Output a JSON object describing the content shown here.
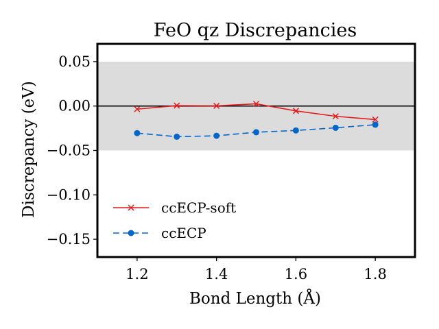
{
  "chart_data": {
    "type": "line",
    "title": "FeO qz Discrepancies",
    "xlabel": "Bond Length (Å)",
    "ylabel": "Discrepancy (eV)",
    "xlim": [
      1.1,
      1.9
    ],
    "ylim": [
      -0.17,
      0.07
    ],
    "xticks": [
      1.2,
      1.4,
      1.6,
      1.8
    ],
    "xtick_labels": [
      "1.2",
      "1.4",
      "1.6",
      "1.8"
    ],
    "yticks": [
      0.05,
      0.0,
      -0.05,
      -0.1,
      -0.15
    ],
    "ytick_labels": [
      "0.05",
      "0.00",
      "−0.05",
      "−0.10",
      "−0.15"
    ],
    "grid": false,
    "shaded_band": [
      -0.05,
      0.05
    ],
    "reference_line": 0.0,
    "legend_position": "lower-left",
    "x": [
      1.2,
      1.3,
      1.4,
      1.5,
      1.6,
      1.7,
      1.8
    ],
    "series": [
      {
        "name": "ccECP-soft",
        "color": "#e41a1c",
        "marker": "x",
        "linestyle": "solid",
        "values": [
          -0.0035,
          0.0005,
          0.0002,
          0.0025,
          -0.0055,
          -0.0115,
          -0.0152
        ]
      },
      {
        "name": "ccECP",
        "color": "#0066cc",
        "marker": "circle",
        "linestyle": "dashed",
        "values": [
          -0.0305,
          -0.0345,
          -0.0335,
          -0.0295,
          -0.0275,
          -0.0245,
          -0.021
        ]
      }
    ]
  }
}
